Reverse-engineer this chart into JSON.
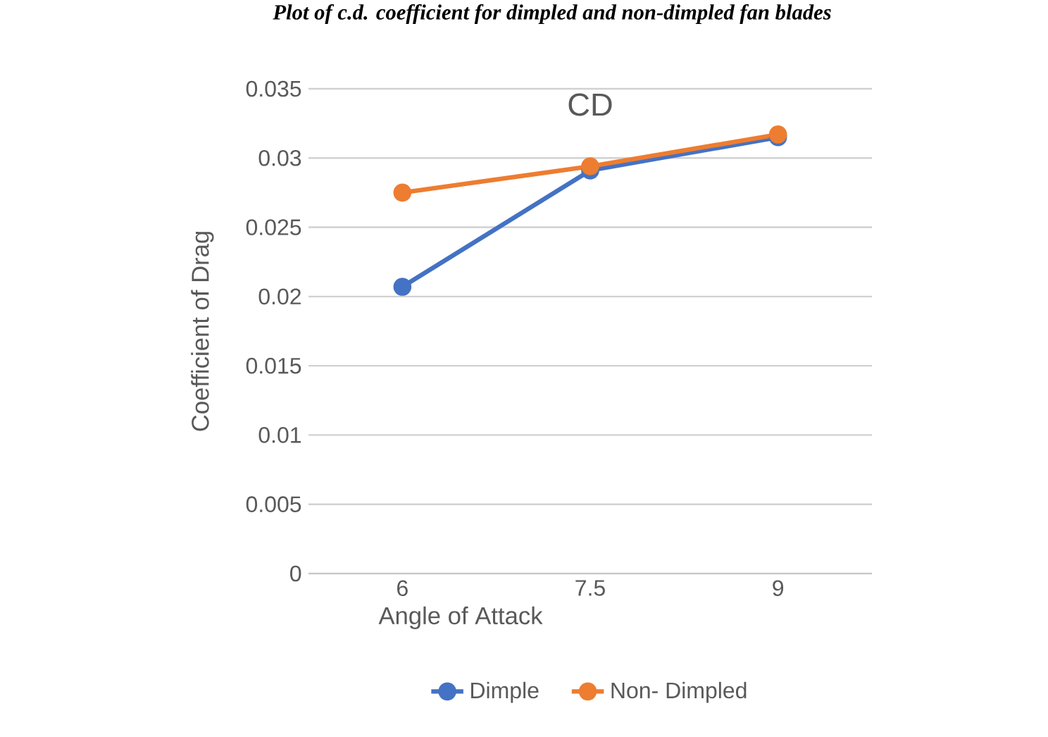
{
  "chart_data": {
    "type": "line",
    "title": "CD",
    "xlabel": "Angle of Attack",
    "ylabel": "Coefficient of Drag",
    "annotations": [
      "Plot of c.d. coefficient for dimpled and non-dimpled fan blades"
    ],
    "categories": [
      "6",
      "7.5",
      "9"
    ],
    "series": [
      {
        "name": "Dimple",
        "color": "#4472c4",
        "values": [
          0.0207,
          0.0291,
          0.0315
        ]
      },
      {
        "name": "Non- Dimpled",
        "color": "#ed7d31",
        "values": [
          0.0275,
          0.0294,
          0.0317
        ]
      }
    ],
    "ylim": [
      0,
      0.035
    ],
    "yticks": [
      0,
      0.005,
      0.01,
      0.015,
      0.02,
      0.025,
      0.03,
      0.035
    ],
    "grid": "y",
    "legend": "bottom",
    "marker": "circle",
    "line_style": "solid"
  }
}
